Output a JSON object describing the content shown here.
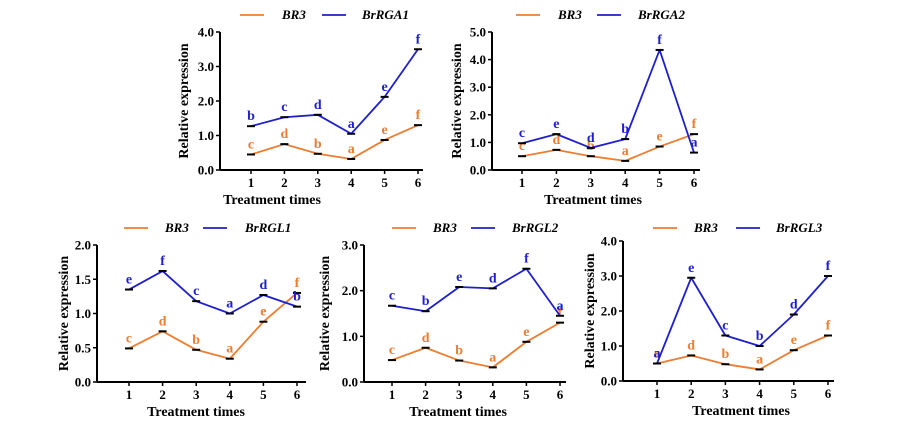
{
  "colors": {
    "br3": "#ED7D31",
    "brrga": "#1F1FCC",
    "axis": "#000000"
  },
  "chart_data": [
    {
      "type": "line",
      "xlabel": "Treatment times",
      "ylabel": "Relative expression",
      "x": [
        1,
        2,
        3,
        4,
        5,
        6
      ],
      "ylim": [
        0.0,
        4.0
      ],
      "yticks": [
        "0.0",
        "1.0",
        "2.0",
        "3.0",
        "4.0"
      ],
      "series": [
        {
          "name": "BR3",
          "color": "#ED7D31",
          "values": [
            0.45,
            0.75,
            0.47,
            0.32,
            0.87,
            1.3
          ],
          "letters": [
            "c",
            "d",
            "b",
            "a",
            "e",
            "f"
          ]
        },
        {
          "name": "BrRGA1",
          "color": "#1F1FCC",
          "values": [
            1.27,
            1.53,
            1.6,
            1.05,
            2.12,
            3.5
          ],
          "letters": [
            "b",
            "c",
            "d",
            "a",
            "e",
            "f"
          ]
        }
      ]
    },
    {
      "type": "line",
      "xlabel": "Treatment times",
      "ylabel": "Relative expression",
      "x": [
        1,
        2,
        3,
        4,
        5,
        6
      ],
      "ylim": [
        0.0,
        5.0
      ],
      "yticks": [
        "0.0",
        "1.0",
        "2.0",
        "3.0",
        "4.0",
        "5.0"
      ],
      "series": [
        {
          "name": "BR3",
          "color": "#ED7D31",
          "values": [
            0.5,
            0.73,
            0.5,
            0.33,
            0.85,
            1.3
          ],
          "letters": [
            "c",
            "d",
            "b",
            "a",
            "e",
            "f"
          ]
        },
        {
          "name": "BrRGA2",
          "color": "#1F1FCC",
          "values": [
            0.97,
            1.3,
            0.8,
            1.12,
            4.35,
            0.63
          ],
          "letters": [
            "c",
            "e",
            "d",
            "b",
            "f",
            "a"
          ]
        }
      ]
    },
    {
      "type": "line",
      "xlabel": "Treatment times",
      "ylabel": "Relative expression",
      "x": [
        1,
        2,
        3,
        4,
        5,
        6
      ],
      "ylim": [
        0.0,
        2.0
      ],
      "yticks": [
        "0.0",
        "0.5",
        "1.0",
        "1.5",
        "2.0"
      ],
      "series": [
        {
          "name": "BR3",
          "color": "#ED7D31",
          "values": [
            0.49,
            0.74,
            0.47,
            0.34,
            0.88,
            1.3
          ],
          "letters": [
            "c",
            "d",
            "b",
            "a",
            "e",
            "f"
          ]
        },
        {
          "name": "BrRGL1",
          "color": "#1F1FCC",
          "values": [
            1.35,
            1.62,
            1.18,
            1.0,
            1.27,
            1.1
          ],
          "letters": [
            "e",
            "f",
            "c",
            "a",
            "d",
            "b"
          ]
        }
      ]
    },
    {
      "type": "line",
      "xlabel": "Treatment times",
      "ylabel": "Relative expression",
      "x": [
        1,
        2,
        3,
        4,
        5,
        6
      ],
      "ylim": [
        0.0,
        3.0
      ],
      "yticks": [
        "0.0",
        "1.0",
        "2.0",
        "3.0"
      ],
      "series": [
        {
          "name": "BR3",
          "color": "#ED7D31",
          "values": [
            0.48,
            0.75,
            0.47,
            0.32,
            0.88,
            1.3
          ],
          "letters": [
            "c",
            "d",
            "b",
            "a",
            "e",
            "f"
          ]
        },
        {
          "name": "BrRGL2",
          "color": "#1F1FCC",
          "values": [
            1.67,
            1.55,
            2.08,
            2.05,
            2.48,
            1.45
          ],
          "letters": [
            "c",
            "b",
            "e",
            "d",
            "f",
            "a"
          ]
        }
      ]
    },
    {
      "type": "line",
      "xlabel": "Treatment times",
      "ylabel": "Relative expression",
      "x": [
        1,
        2,
        3,
        4,
        5,
        6
      ],
      "ylim": [
        0.0,
        4.0
      ],
      "yticks": [
        "0.0",
        "1.0",
        "2.0",
        "3.0",
        "4.0"
      ],
      "series": [
        {
          "name": "BR3",
          "color": "#ED7D31",
          "values": [
            0.5,
            0.73,
            0.48,
            0.33,
            0.88,
            1.3
          ],
          "letters": [
            "c",
            "d",
            "b",
            "a",
            "e",
            "f"
          ]
        },
        {
          "name": "BrRGL3",
          "color": "#1F1FCC",
          "values": [
            0.5,
            2.95,
            1.3,
            1.0,
            1.9,
            3.0
          ],
          "letters": [
            "a",
            "e",
            "c",
            "b",
            "d",
            "f"
          ]
        }
      ]
    }
  ]
}
